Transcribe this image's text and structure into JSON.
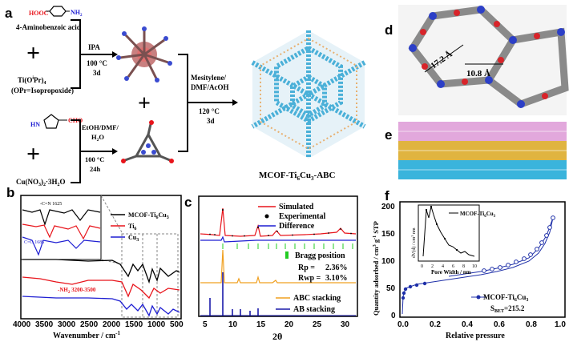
{
  "panels": {
    "a": "a",
    "b": "b",
    "c": "c",
    "d": "d",
    "e": "e",
    "f": "f"
  },
  "scheme": {
    "cooh": "HOOC",
    "nh2": "NH",
    "nh2_sub": "2",
    "aminobenzoic": "4-Aminobenzoic acid",
    "ti_reagent": "Ti(O",
    "ti_reagent_sup": "i",
    "ti_reagent_end": "Pr)",
    "ti_reagent_sub": "4",
    "opr_note": "(OPr=Isopropoxide)",
    "ipa": "IPA",
    "cond1_temp": "100 °C",
    "cond1_time": "3d",
    "cho": "CHO",
    "hn": "HN",
    "cu_reagent": "Cu(NO",
    "cu_reagent_mid": ")",
    "cu_reagent_end": "·3H",
    "cu_reagent_o": "O",
    "cond2_solvent1": "EtOH/DMF/",
    "cond2_solvent2": "H",
    "cond2_solvent2_end": "O",
    "cond2_temp": "100 °C",
    "cond2_time": "24h",
    "cond3_solvent1": "Mesitylene/",
    "cond3_solvent2": "DMF/AcOH",
    "cond3_temp": "120 °C",
    "cond3_time": "3d",
    "product": "MCOF-Ti",
    "product_sub1": "6",
    "product_mid": "Cu",
    "product_sub2": "3",
    "product_end": "-ABC"
  },
  "panel_d": {
    "dim1": "17.2 Å",
    "dim2": "10.8 Å"
  },
  "panel_b": {
    "ann_cn": "-C=N 1625",
    "ann_co": "C=O 1685",
    "ann_nh2": "-NH",
    "ann_nh2_sub": "2",
    "ann_nh2_end": " 3200-3500",
    "legend": [
      "MCOF-Ti6Cu3",
      "Ti6",
      "Cu3"
    ],
    "xlabel": "Wavenumber / cm",
    "xlabel_sup": "-1",
    "xticks": [
      "4000",
      "3500",
      "3000",
      "2500",
      "2000",
      "1500",
      "1000",
      "500"
    ],
    "colors": {
      "mcof": "#000000",
      "ti6": "#e8141b",
      "cu3": "#1e1ed2"
    }
  },
  "panel_c": {
    "legend1": [
      "Simulated",
      "Experimental",
      "Difference"
    ],
    "bragg": "Bragg position",
    "rp_label": "Rp  =",
    "rp_value": "2.36%",
    "rwp_label": "Rwp =",
    "rwp_value": "3.10%",
    "legend2": [
      "ABC stacking",
      "AB stacking"
    ],
    "xlabel": "2θ",
    "xticks": [
      "5",
      "10",
      "15",
      "20",
      "25",
      "30"
    ],
    "colors": {
      "sim": "#e8141b",
      "diff": "#1e1ed2",
      "bragg": "#22cc22",
      "abc": "#f0a020",
      "ab": "#1a1aaa"
    }
  },
  "panel_f": {
    "ylabel": "Quantity adsorbed / cm",
    "ylabel_unit": "g",
    "ylabel_end": " STP",
    "xlabel": "Relative pressure",
    "xticks": [
      "0.0",
      "0.2",
      "0.4",
      "0.6",
      "0.8",
      "1.0"
    ],
    "yticks": [
      "0",
      "50",
      "100",
      "150",
      "200"
    ],
    "legend": "MCOF-Ti6Cu3",
    "sbet": "S",
    "sbet_sub": "BET",
    "sbet_value": "=215.2",
    "inset_legend": "MCOF-Ti6Cu3",
    "inset_xlabel": "Pore Width / nm",
    "inset_ylabel": "dV(d) / cm",
    "inset_xticks": [
      "0",
      "2",
      "4",
      "6",
      "8",
      "10"
    ],
    "inset_yticks": [
      "0.00",
      "0.05",
      "0.10"
    ],
    "color": "#1e2fa8"
  }
}
